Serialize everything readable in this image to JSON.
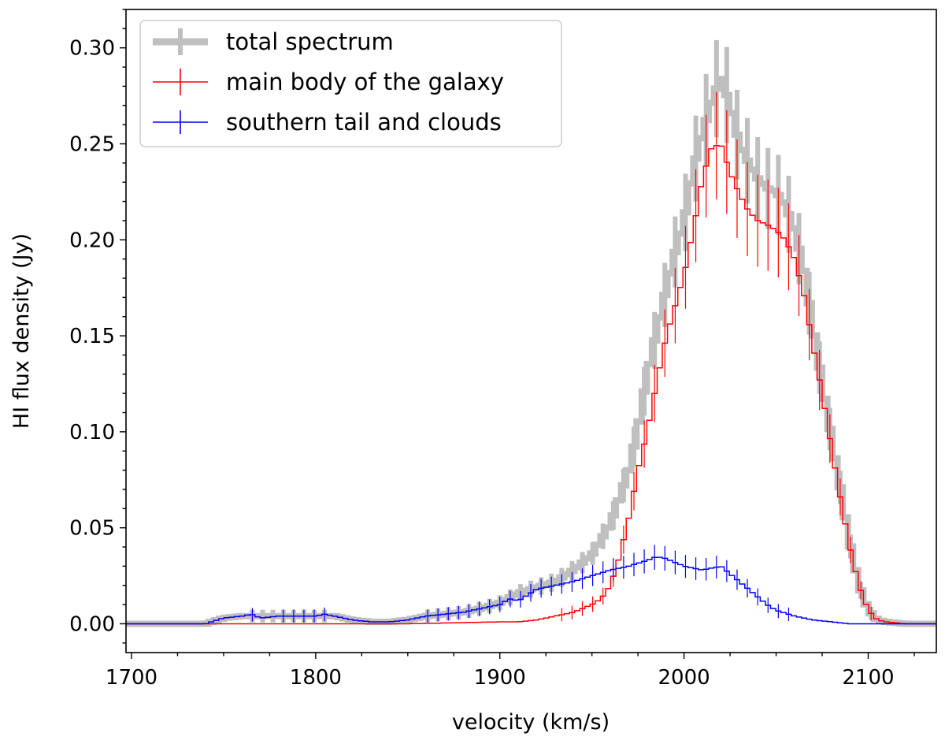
{
  "chart_data": {
    "type": "line",
    "drawstyle": "steps-mid-with-errorbars",
    "title": "",
    "xlabel": "velocity (km/s)",
    "ylabel": "HI flux density (Jy)",
    "xlim": [
      1697,
      2137
    ],
    "ylim": [
      -0.015,
      0.32
    ],
    "xticks": [
      1700,
      1800,
      1900,
      2000,
      2100
    ],
    "xtick_labels": [
      "1700",
      "1800",
      "1900",
      "2000",
      "2100"
    ],
    "yticks": [
      0.0,
      0.05,
      0.1,
      0.15,
      0.2,
      0.25,
      0.3
    ],
    "ytick_labels": [
      "0.00",
      "0.05",
      "0.10",
      "0.15",
      "0.20",
      "0.25",
      "0.30"
    ],
    "grid": false,
    "legend_position": "top-left",
    "series": [
      {
        "name": "total spectrum",
        "color": "#bfbfbf",
        "x": [
          1740,
          1750,
          1760,
          1770,
          1780,
          1790,
          1800,
          1810,
          1820,
          1830,
          1840,
          1850,
          1860,
          1870,
          1880,
          1890,
          1900,
          1910,
          1920,
          1930,
          1940,
          1950,
          1960,
          1970,
          1975,
          1980,
          1985,
          1990,
          1995,
          2000,
          2005,
          2010,
          2015,
          2020,
          2025,
          2030,
          2035,
          2040,
          2045,
          2050,
          2055,
          2060,
          2065,
          2070,
          2075,
          2080,
          2085,
          2090,
          2095,
          2100,
          2105,
          2110,
          2120,
          2130
        ],
        "y": [
          0.0,
          0.003,
          0.004,
          0.004,
          0.004,
          0.004,
          0.004,
          0.004,
          0.002,
          0.001,
          0.001,
          0.002,
          0.004,
          0.005,
          0.006,
          0.008,
          0.011,
          0.016,
          0.019,
          0.022,
          0.028,
          0.036,
          0.052,
          0.08,
          0.102,
          0.13,
          0.152,
          0.173,
          0.193,
          0.21,
          0.237,
          0.256,
          0.272,
          0.285,
          0.27,
          0.25,
          0.24,
          0.232,
          0.227,
          0.225,
          0.218,
          0.205,
          0.185,
          0.155,
          0.125,
          0.097,
          0.07,
          0.042,
          0.02,
          0.007,
          0.002,
          0.001,
          0.0,
          0.0
        ]
      },
      {
        "name": "main body of the galaxy",
        "color": "#ff0000",
        "x": [
          1740,
          1800,
          1850,
          1900,
          1910,
          1920,
          1930,
          1940,
          1950,
          1955,
          1960,
          1965,
          1970,
          1975,
          1980,
          1985,
          1990,
          1995,
          2000,
          2005,
          2010,
          2015,
          2020,
          2025,
          2030,
          2035,
          2040,
          2045,
          2050,
          2055,
          2060,
          2065,
          2070,
          2075,
          2080,
          2085,
          2090,
          2095,
          2100,
          2105,
          2110,
          2120,
          2130
        ],
        "y": [
          0.0,
          0.0,
          0.0,
          0.001,
          0.001,
          0.002,
          0.004,
          0.006,
          0.01,
          0.013,
          0.02,
          0.035,
          0.055,
          0.08,
          0.1,
          0.125,
          0.148,
          0.165,
          0.182,
          0.205,
          0.232,
          0.248,
          0.25,
          0.235,
          0.224,
          0.215,
          0.21,
          0.208,
          0.205,
          0.2,
          0.19,
          0.172,
          0.145,
          0.12,
          0.092,
          0.065,
          0.04,
          0.02,
          0.007,
          0.002,
          0.001,
          0.0,
          0.0
        ]
      },
      {
        "name": "southern tail and clouds",
        "color": "#0000ff",
        "x": [
          1740,
          1750,
          1760,
          1765,
          1770,
          1780,
          1790,
          1800,
          1805,
          1810,
          1820,
          1830,
          1840,
          1850,
          1860,
          1870,
          1880,
          1890,
          1900,
          1905,
          1910,
          1920,
          1930,
          1940,
          1950,
          1960,
          1970,
          1980,
          1985,
          1990,
          2000,
          2010,
          2020,
          2025,
          2030,
          2035,
          2040,
          2045,
          2050,
          2060,
          2070,
          2080,
          2090,
          2100,
          2110,
          2130
        ],
        "y": [
          0.0,
          0.003,
          0.004,
          0.005,
          0.003,
          0.004,
          0.004,
          0.004,
          0.005,
          0.004,
          0.002,
          0.001,
          0.001,
          0.002,
          0.004,
          0.005,
          0.006,
          0.008,
          0.01,
          0.013,
          0.012,
          0.018,
          0.02,
          0.022,
          0.025,
          0.028,
          0.03,
          0.033,
          0.035,
          0.034,
          0.03,
          0.028,
          0.03,
          0.026,
          0.022,
          0.018,
          0.014,
          0.01,
          0.007,
          0.004,
          0.002,
          0.001,
          0.0,
          0.0,
          0.0,
          0.0
        ]
      }
    ]
  }
}
